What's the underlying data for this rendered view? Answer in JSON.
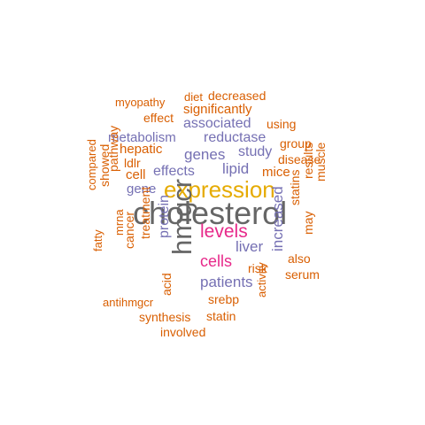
{
  "palette": {
    "orange": "#d95f02",
    "purple": "#7570b3",
    "gold": "#e6ab02",
    "magenta": "#e7298a",
    "gray": "#666666"
  },
  "words": {
    "cholesterol": {
      "text": "cholesterol",
      "color": "#666666"
    },
    "hmgcr": {
      "text": "hmgcr",
      "color": "#666666"
    },
    "expression": {
      "text": "expression",
      "color": "#e6ab02"
    },
    "levels": {
      "text": "levels",
      "color": "#e7298a"
    },
    "cells": {
      "text": "cells",
      "color": "#e7298a"
    },
    "patients": {
      "text": "patients",
      "color": "#7570b3"
    },
    "liver": {
      "text": "liver",
      "color": "#7570b3"
    },
    "increased": {
      "text": "increased",
      "color": "#7570b3"
    },
    "protein": {
      "text": "protein",
      "color": "#7570b3"
    },
    "lipid": {
      "text": "lipid",
      "color": "#7570b3"
    },
    "genes": {
      "text": "genes",
      "color": "#7570b3"
    },
    "reductase": {
      "text": "reductase",
      "color": "#7570b3"
    },
    "metabolism": {
      "text": "metabolism",
      "color": "#7570b3"
    },
    "associated": {
      "text": "associated",
      "color": "#7570b3"
    },
    "effects": {
      "text": "effects",
      "color": "#7570b3"
    },
    "gene": {
      "text": "gene",
      "color": "#7570b3"
    },
    "study": {
      "text": "study",
      "color": "#7570b3"
    },
    "myopathy": {
      "text": "myopathy",
      "color": "#d95f02"
    },
    "diet": {
      "text": "diet",
      "color": "#d95f02"
    },
    "decreased": {
      "text": "decreased",
      "color": "#d95f02"
    },
    "effect": {
      "text": "effect",
      "color": "#d95f02"
    },
    "significantly": {
      "text": "significantly",
      "color": "#d95f02"
    },
    "using": {
      "text": "using",
      "color": "#d95f02"
    },
    "group": {
      "text": "group",
      "color": "#d95f02"
    },
    "hepatic": {
      "text": "hepatic",
      "color": "#d95f02"
    },
    "ldlr": {
      "text": "ldlr",
      "color": "#d95f02"
    },
    "cell": {
      "text": "cell",
      "color": "#d95f02"
    },
    "disease": {
      "text": "disease",
      "color": "#d95f02"
    },
    "mice": {
      "text": "mice",
      "color": "#d95f02"
    },
    "pathway": {
      "text": "pathway",
      "color": "#d95f02"
    },
    "results": {
      "text": "results",
      "color": "#d95f02"
    },
    "muscle": {
      "text": "muscle",
      "color": "#d95f02"
    },
    "compared": {
      "text": "compared",
      "color": "#d95f02"
    },
    "showed": {
      "text": "showed",
      "color": "#d95f02"
    },
    "statins": {
      "text": "statins",
      "color": "#d95f02"
    },
    "mrna": {
      "text": "mrna",
      "color": "#d95f02"
    },
    "may": {
      "text": "may",
      "color": "#d95f02"
    },
    "fatty": {
      "text": "fatty",
      "color": "#d95f02"
    },
    "cancer": {
      "text": "cancer",
      "color": "#d95f02"
    },
    "treatment": {
      "text": "treatment",
      "color": "#d95f02"
    },
    "also": {
      "text": "also",
      "color": "#d95f02"
    },
    "risk": {
      "text": "risk",
      "color": "#d95f02"
    },
    "serum": {
      "text": "serum",
      "color": "#d95f02"
    },
    "antihmgcr": {
      "text": "antihmgcr",
      "color": "#d95f02"
    },
    "acid": {
      "text": "acid",
      "color": "#d95f02"
    },
    "srebp": {
      "text": "srebp",
      "color": "#d95f02"
    },
    "synthesis": {
      "text": "synthesis",
      "color": "#d95f02"
    },
    "statin": {
      "text": "statin",
      "color": "#d95f02"
    },
    "activity": {
      "text": "activity",
      "color": "#d95f02"
    },
    "involved": {
      "text": "involved",
      "color": "#d95f02"
    }
  }
}
